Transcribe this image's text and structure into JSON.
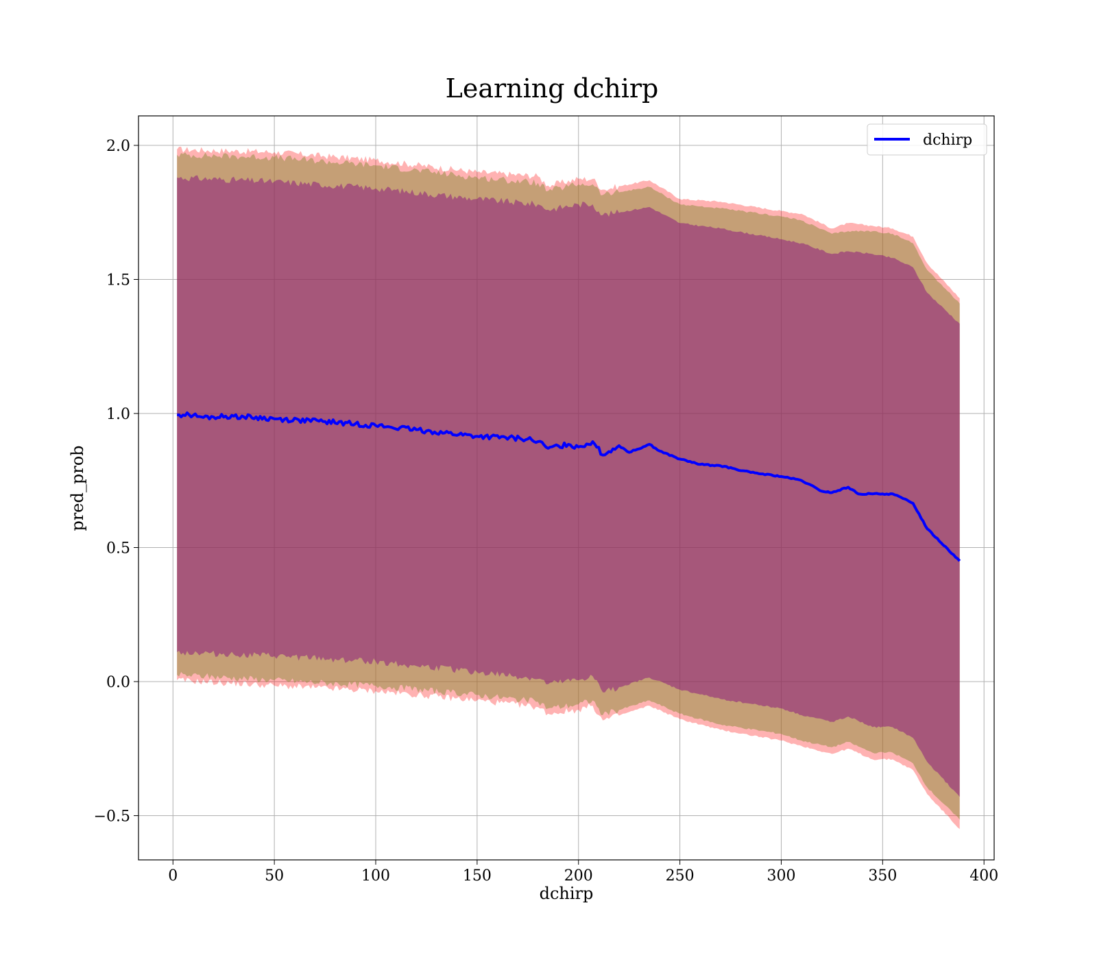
{
  "chart_data": {
    "type": "line",
    "title": "Learning dchirp",
    "xlabel": "dchirp",
    "ylabel": "pred_prob",
    "xlim": [
      -17,
      405
    ],
    "ylim": [
      -0.665,
      2.11
    ],
    "xticks": [
      0,
      50,
      100,
      150,
      200,
      250,
      300,
      350,
      400
    ],
    "yticks": [
      -0.5,
      0.0,
      0.5,
      1.0,
      1.5,
      2.0
    ],
    "ytick_labels": [
      "−0.5",
      "0.0",
      "0.5",
      "1.0",
      "1.5",
      "2.0"
    ],
    "grid": true,
    "legend_position": "top-right",
    "colors": {
      "line": "#0000ff",
      "band_outer": "#ff0000",
      "band_middle": "#8c8c3a",
      "band_inner": "#800080"
    },
    "series": [
      {
        "name": "dchirp",
        "x": [
          2,
          8,
          15,
          30,
          50,
          75,
          100,
          125,
          150,
          175,
          180,
          185,
          195,
          200,
          207,
          212,
          220,
          225,
          235,
          240,
          250,
          260,
          270,
          285,
          300,
          310,
          320,
          325,
          333,
          338,
          345,
          355,
          365,
          372,
          388
        ],
        "y": [
          0.995,
          0.995,
          0.985,
          0.99,
          0.98,
          0.97,
          0.955,
          0.935,
          0.915,
          0.905,
          0.895,
          0.87,
          0.885,
          0.875,
          0.895,
          0.845,
          0.88,
          0.855,
          0.885,
          0.86,
          0.83,
          0.81,
          0.805,
          0.78,
          0.765,
          0.75,
          0.71,
          0.705,
          0.725,
          0.7,
          0.7,
          0.7,
          0.665,
          0.57,
          0.45
        ]
      }
    ],
    "bands": [
      {
        "role": "outer",
        "x": [
          2,
          50,
          100,
          150,
          180,
          185,
          200,
          207,
          212,
          235,
          250,
          270,
          300,
          310,
          325,
          333,
          345,
          355,
          365,
          372,
          388
        ],
        "upper": [
          1.985,
          1.975,
          1.945,
          1.9,
          1.885,
          1.85,
          1.875,
          1.875,
          1.835,
          1.87,
          1.8,
          1.79,
          1.755,
          1.745,
          1.69,
          1.71,
          1.7,
          1.69,
          1.66,
          1.56,
          1.43
        ],
        "lower": [
          0.005,
          -0.015,
          -0.035,
          -0.07,
          -0.095,
          -0.12,
          -0.105,
          -0.09,
          -0.145,
          -0.09,
          -0.14,
          -0.18,
          -0.22,
          -0.24,
          -0.27,
          -0.25,
          -0.29,
          -0.29,
          -0.33,
          -0.42,
          -0.55
        ]
      },
      {
        "role": "middle",
        "x": [
          2,
          50,
          100,
          150,
          180,
          185,
          200,
          207,
          212,
          235,
          250,
          270,
          300,
          310,
          325,
          333,
          345,
          355,
          365,
          372,
          388
        ],
        "upper": [
          1.965,
          1.955,
          1.925,
          1.88,
          1.86,
          1.83,
          1.855,
          1.855,
          1.815,
          1.845,
          1.78,
          1.765,
          1.735,
          1.72,
          1.67,
          1.68,
          1.68,
          1.67,
          1.635,
          1.535,
          1.41
        ],
        "lower": [
          0.025,
          0.005,
          -0.015,
          -0.05,
          -0.075,
          -0.1,
          -0.085,
          -0.07,
          -0.125,
          -0.07,
          -0.12,
          -0.16,
          -0.195,
          -0.22,
          -0.245,
          -0.225,
          -0.265,
          -0.265,
          -0.305,
          -0.395,
          -0.515
        ]
      },
      {
        "role": "inner",
        "x": [
          2,
          50,
          100,
          150,
          180,
          185,
          200,
          207,
          212,
          235,
          250,
          270,
          300,
          310,
          325,
          333,
          345,
          355,
          365,
          372,
          388
        ],
        "upper": [
          1.88,
          1.865,
          1.84,
          1.8,
          1.78,
          1.76,
          1.78,
          1.78,
          1.74,
          1.77,
          1.71,
          1.69,
          1.65,
          1.635,
          1.595,
          1.605,
          1.595,
          1.58,
          1.545,
          1.45,
          1.335
        ],
        "lower": [
          0.11,
          0.095,
          0.075,
          0.035,
          0.01,
          -0.01,
          0.005,
          0.02,
          -0.04,
          0.015,
          -0.03,
          -0.065,
          -0.1,
          -0.125,
          -0.15,
          -0.13,
          -0.17,
          -0.17,
          -0.21,
          -0.3,
          -0.43
        ]
      }
    ]
  }
}
